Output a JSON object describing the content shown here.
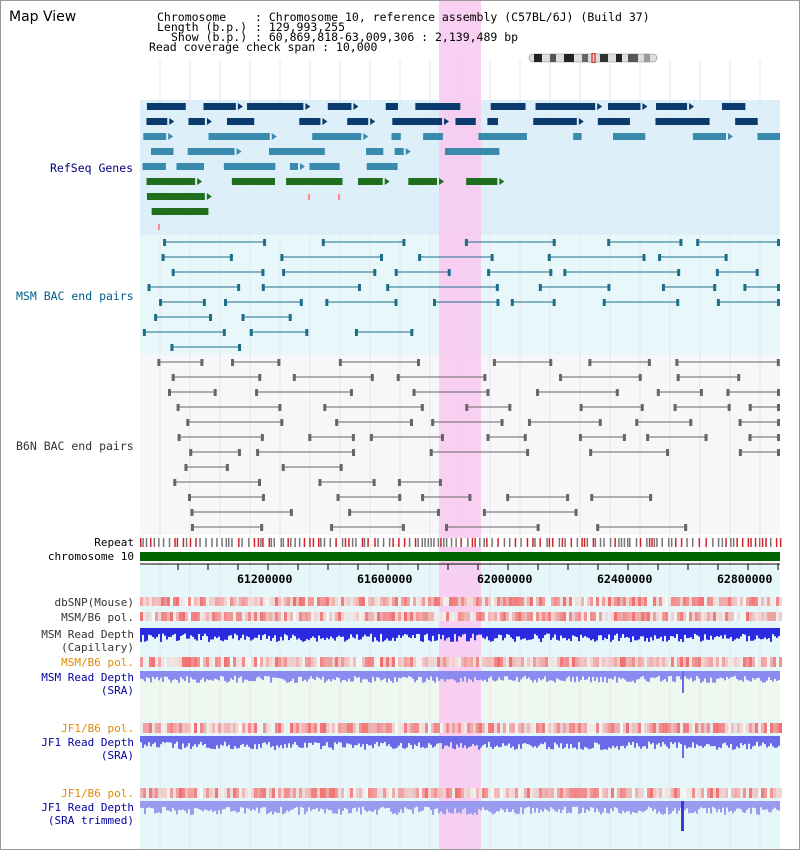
{
  "view_title": "Map View",
  "info": {
    "chromosome_label": "Chromosome",
    "chromosome_value": ": Chromosome 10, reference assembly (C57BL/6J) (Build 37)",
    "length_label": "Length (b.p.)",
    "length_value": ": 129,993,255",
    "show_label": "Show (b.p.)",
    "show_value": ": 60,869,818-63,009,306 : 2,139,489 bp",
    "coverage_text": "Read coverage check span : 10,000"
  },
  "tracks": {
    "refseq": "RefSeq Genes",
    "msm_bac": "MSM BAC end pairs",
    "b6n_bac": "B6N BAC end pairs",
    "repeat": "Repeat",
    "chromosome": "chromosome 10",
    "dbsnp": "dbSNP(Mouse)",
    "msm_b6_pol_1": "MSM/B6 pol.",
    "msm_read_depth_cap_1": "MSM Read Depth",
    "msm_read_depth_cap_2": "(Capillary)",
    "msm_b6_pol_2": "MSM/B6 pol.",
    "msm_read_depth_sra_1": "MSM Read Depth",
    "msm_read_depth_sra_2": "(SRA)",
    "jf1_b6_pol_1": "JF1/B6 pol.",
    "jf1_read_depth_sra_1": "JF1 Read Depth",
    "jf1_read_depth_sra_2": "(SRA)",
    "jf1_b6_pol_2": "JF1/B6 pol.",
    "jf1_read_depth_trim_1": "JF1 Read Depth",
    "jf1_read_depth_trim_2": "(SRA trimmed)"
  },
  "axis_ticks": [
    "61200000",
    "61600000",
    "62000000",
    "62400000",
    "62800000"
  ],
  "colors": {
    "refseq_label": "#000080",
    "msm_label": "#005F87",
    "b6n_label": "#333333",
    "orange_label": "#E08A00",
    "blue_label": "#0000A0",
    "highlight": "#F9C8F0",
    "refseq_bg": "#DDF0FA",
    "msm_bg": "#E8F8FA",
    "chromosome_bar": "#006400"
  }
}
